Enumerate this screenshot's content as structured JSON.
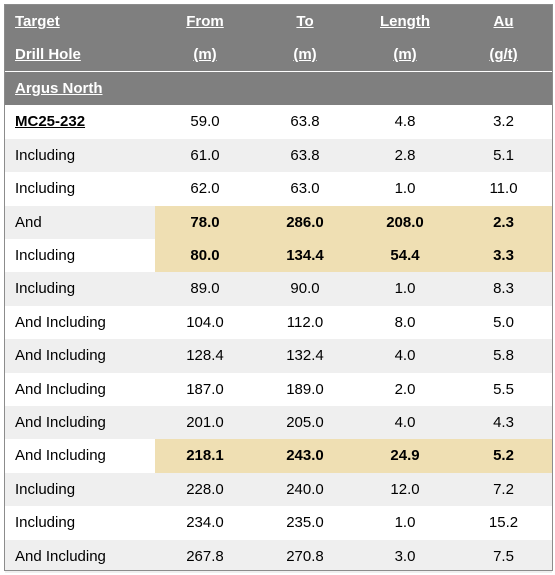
{
  "header": {
    "row1": {
      "target": "Target",
      "from": "From",
      "to": "To",
      "length": "Length",
      "au": "Au"
    },
    "row2": {
      "drill_hole": "Drill Hole",
      "from_unit": "(m)",
      "to_unit": "(m)",
      "length_unit": "(m)",
      "au_unit": "(g/t)"
    }
  },
  "group": {
    "name": "Argus North"
  },
  "rows": [
    {
      "label": "MC25-232",
      "from": "59.0",
      "to": "63.8",
      "length": "4.8",
      "au": "3.2"
    },
    {
      "label": "Including",
      "from": "61.0",
      "to": "63.8",
      "length": "2.8",
      "au": "5.1"
    },
    {
      "label": "Including",
      "from": "62.0",
      "to": "63.0",
      "length": "1.0",
      "au": "11.0"
    },
    {
      "label": "And",
      "from": "78.0",
      "to": "286.0",
      "length": "208.0",
      "au": "2.3"
    },
    {
      "label": "Including",
      "from": "80.0",
      "to": "134.4",
      "length": "54.4",
      "au": "3.3"
    },
    {
      "label": "Including",
      "from": "89.0",
      "to": "90.0",
      "length": "1.0",
      "au": "8.3"
    },
    {
      "label": "And Including",
      "from": "104.0",
      "to": "112.0",
      "length": "8.0",
      "au": "5.0"
    },
    {
      "label": "And Including",
      "from": "128.4",
      "to": "132.4",
      "length": "4.0",
      "au": "5.8"
    },
    {
      "label": "And Including",
      "from": "187.0",
      "to": "189.0",
      "length": "2.0",
      "au": "5.5"
    },
    {
      "label": "And Including",
      "from": "201.0",
      "to": "205.0",
      "length": "4.0",
      "au": "4.3"
    },
    {
      "label": "And Including",
      "from": "218.1",
      "to": "243.0",
      "length": "24.9",
      "au": "5.2"
    },
    {
      "label": "Including",
      "from": "228.0",
      "to": "240.0",
      "length": "12.0",
      "au": "7.2"
    },
    {
      "label": "Including",
      "from": "234.0",
      "to": "235.0",
      "length": "1.0",
      "au": "15.2"
    },
    {
      "label": "And Including",
      "from": "267.8",
      "to": "270.8",
      "length": "3.0",
      "au": "7.5"
    }
  ],
  "colors": {
    "header_bg": "#7f7f7f",
    "stripe": "#efefef",
    "highlight": "#efdfb3"
  }
}
